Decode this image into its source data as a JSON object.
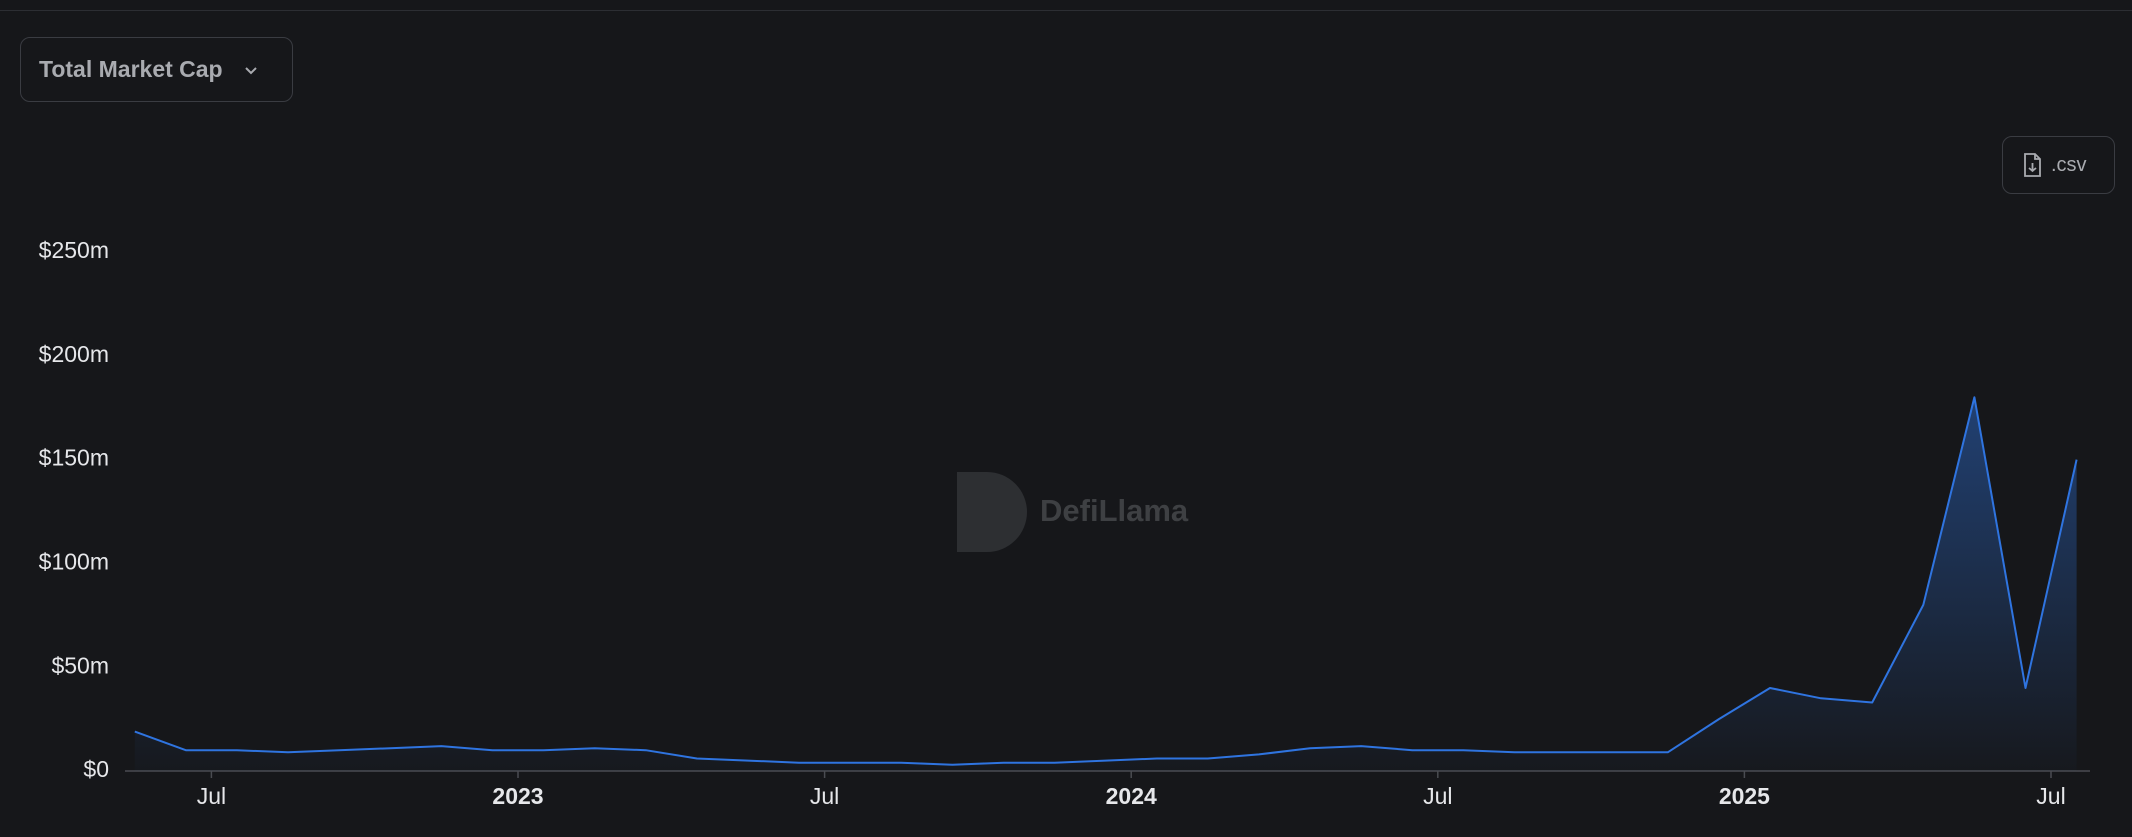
{
  "header": {
    "selector": "Total Market Cap",
    "download": ".csv"
  },
  "chart_data": {
    "type": "line",
    "watermark": "DefiLlama",
    "x": [
      "2022-05",
      "2022-06",
      "2022-07",
      "2022-08",
      "2022-09",
      "2022-10",
      "2022-11",
      "2022-12",
      "2023-01",
      "2023-02",
      "2023-03",
      "2023-04",
      "2023-05",
      "2023-06",
      "2023-07",
      "2023-08",
      "2023-09",
      "2023-10",
      "2023-11",
      "2023-12",
      "2024-01",
      "2024-02",
      "2024-03",
      "2024-04",
      "2024-05",
      "2024-06",
      "2024-07",
      "2024-08",
      "2024-09",
      "2024-10",
      "2024-11",
      "2024-12",
      "2025-01",
      "2025-02",
      "2025-03",
      "2025-04",
      "2025-05",
      "2025-06",
      "2025-07"
    ],
    "series": [
      {
        "name": "Total Market Cap",
        "color": "#2f74e0",
        "values": [
          19000000,
          10000000,
          10000000,
          9000000,
          10000000,
          11000000,
          12000000,
          10000000,
          10000000,
          11000000,
          10000000,
          6000000,
          5000000,
          4000000,
          4000000,
          4000000,
          3000000,
          4000000,
          4000000,
          5000000,
          6000000,
          6000000,
          8000000,
          11000000,
          12000000,
          10000000,
          10000000,
          9000000,
          9000000,
          9000000,
          9000000,
          25000000,
          40000000,
          35000000,
          33000000,
          80000000,
          180000000,
          40000000,
          150000000
        ]
      }
    ],
    "ylim": [
      0,
      250000000
    ],
    "yticks": [
      {
        "value": 0,
        "label": "$0"
      },
      {
        "value": 50000000,
        "label": "$50m"
      },
      {
        "value": 100000000,
        "label": "$100m"
      },
      {
        "value": 150000000,
        "label": "$150m"
      },
      {
        "value": 200000000,
        "label": "$200m"
      },
      {
        "value": 250000000,
        "label": "$250m"
      }
    ],
    "xticks": [
      {
        "value": "2022-07",
        "label": "Jul"
      },
      {
        "value": "2023-01",
        "label": "2023"
      },
      {
        "value": "2023-07",
        "label": "Jul"
      },
      {
        "value": "2024-01",
        "label": "2024"
      },
      {
        "value": "2024-07",
        "label": "Jul"
      },
      {
        "value": "2025-01",
        "label": "2025"
      },
      {
        "value": "2025-07",
        "label": "Jul"
      }
    ],
    "grid": false
  }
}
